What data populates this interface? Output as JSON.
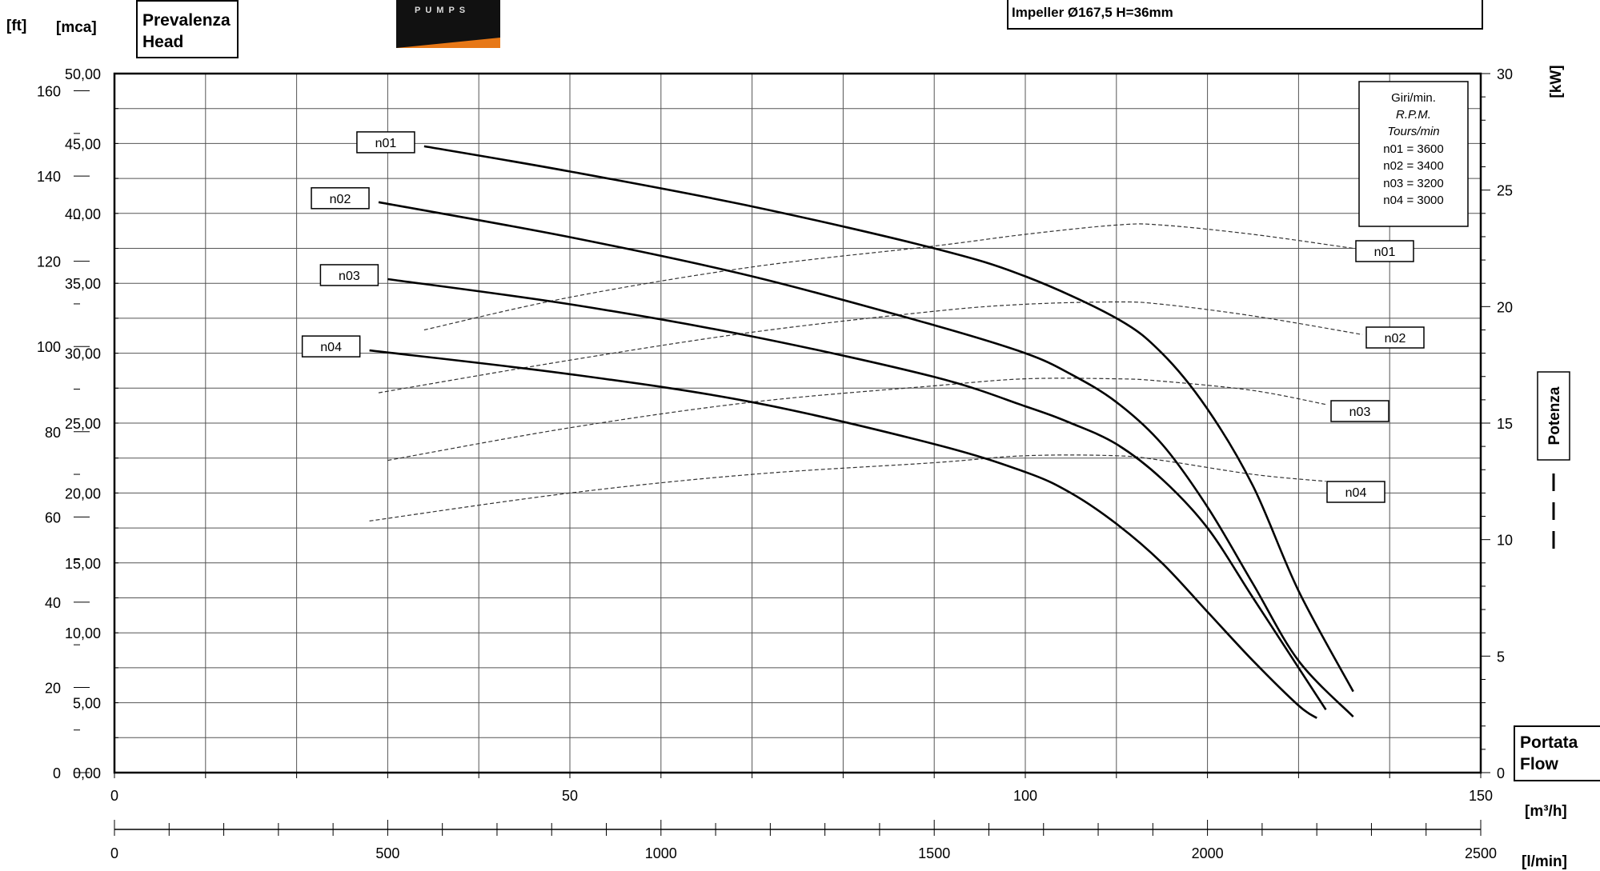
{
  "labels": {
    "ft": "[ft]",
    "mca": "[mca]",
    "kw": "[kW]",
    "m3h": "[m³/h]",
    "lmin": "[l/min]",
    "head_it": "Prevalenza",
    "head_en": "Head",
    "flow_it": "Portata",
    "flow_en": "Flow",
    "power": "Potenza",
    "impeller": "Impeller Ø167,5 H=36mm",
    "logo": "PUMPS"
  },
  "rpm_box": {
    "lines": [
      "Giri/min.",
      "R.P.M.",
      "Tours/min",
      "n01 = 3600",
      "n02 = 3400",
      "n03 = 3200",
      "n04 = 3000"
    ]
  },
  "colors": {
    "curve": "#000000",
    "grid": "#555555",
    "logo_accent": "#e77817"
  },
  "chart_data": {
    "type": "line",
    "x_axis": {
      "label": "[m³/h]",
      "range": [
        0,
        150
      ],
      "ticks": [
        0,
        50,
        100,
        150
      ]
    },
    "x2_axis": {
      "label": "[l/min]",
      "range": [
        0,
        2500
      ],
      "ticks": [
        0,
        500,
        1000,
        1500,
        2000,
        2500
      ]
    },
    "y_axis_mca": {
      "label": "[mca]",
      "range": [
        0,
        50
      ],
      "ticks": [
        "0,00",
        "5,00",
        "10,00",
        "15,00",
        "20,00",
        "25,00",
        "30,00",
        "35,00",
        "40,00",
        "45,00",
        "50,00"
      ]
    },
    "y_axis_ft": {
      "label": "[ft]",
      "ticks": [
        0,
        20,
        40,
        60,
        80,
        100,
        120,
        140,
        160
      ]
    },
    "y_axis_kw": {
      "label": "[kW]",
      "range": [
        0,
        30
      ],
      "ticks": [
        0,
        5,
        10,
        15,
        20,
        25,
        30
      ]
    },
    "grid": true,
    "head_series": [
      {
        "name": "n01",
        "x": [
          34,
          50,
          70,
          90,
          100,
          110,
          115,
          120,
          125,
          130,
          136
        ],
        "y": [
          44.8,
          43.0,
          40.5,
          37.5,
          35.5,
          32.5,
          30.0,
          26.0,
          20.5,
          13.0,
          5.8
        ]
      },
      {
        "name": "n02",
        "x": [
          29,
          50,
          70,
          90,
          100,
          105,
          110,
          115,
          120,
          125,
          130,
          136
        ],
        "y": [
          40.8,
          38.3,
          35.5,
          32.0,
          30.0,
          28.5,
          26.5,
          23.5,
          19.0,
          13.5,
          8.0,
          4.0
        ]
      },
      {
        "name": "n03",
        "x": [
          30,
          50,
          70,
          90,
          100,
          105,
          110,
          115,
          120,
          125,
          130,
          133
        ],
        "y": [
          35.3,
          33.5,
          31.2,
          28.3,
          26.2,
          25.0,
          23.5,
          21.0,
          17.5,
          12.5,
          7.5,
          4.5
        ]
      },
      {
        "name": "n04",
        "x": [
          28,
          50,
          70,
          90,
          100,
          105,
          110,
          115,
          120,
          125,
          130,
          132
        ],
        "y": [
          30.2,
          28.5,
          26.5,
          23.5,
          21.5,
          20.0,
          17.8,
          15.0,
          11.5,
          8.0,
          4.8,
          3.9
        ]
      }
    ],
    "power_series": [
      {
        "name": "n01",
        "x": [
          34,
          50,
          70,
          90,
          100,
          110,
          115,
          125,
          136
        ],
        "y": [
          19.0,
          20.4,
          21.7,
          22.6,
          23.1,
          23.5,
          23.5,
          23.1,
          22.5
        ]
      },
      {
        "name": "n02",
        "x": [
          29,
          50,
          70,
          90,
          100,
          110,
          115,
          125,
          137
        ],
        "y": [
          16.3,
          17.7,
          18.9,
          19.8,
          20.1,
          20.2,
          20.1,
          19.6,
          18.8
        ]
      },
      {
        "name": "n03",
        "x": [
          30,
          50,
          70,
          90,
          100,
          110,
          115,
          125,
          133
        ],
        "y": [
          13.4,
          14.8,
          15.9,
          16.6,
          16.9,
          16.9,
          16.8,
          16.4,
          15.8
        ]
      },
      {
        "name": "n04",
        "x": [
          28,
          50,
          70,
          90,
          100,
          110,
          115,
          125,
          133
        ],
        "y": [
          10.8,
          12.0,
          12.8,
          13.3,
          13.6,
          13.6,
          13.4,
          12.8,
          12.5
        ]
      }
    ]
  }
}
